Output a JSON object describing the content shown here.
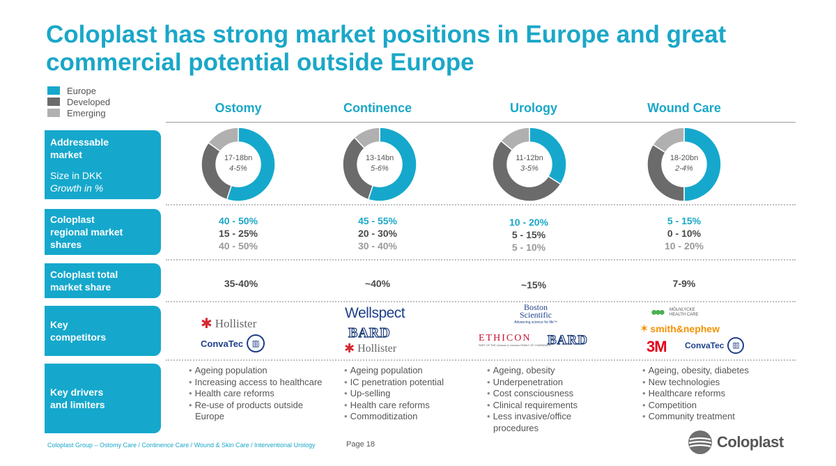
{
  "title": "Coloplast has strong market positions in Europe and great commercial potential outside Europe",
  "legend": [
    {
      "label": "Europe",
      "color": "#15a8cc"
    },
    {
      "label": "Developed",
      "color": "#6b6b6b"
    },
    {
      "label": "Emerging",
      "color": "#b0b0b0"
    }
  ],
  "rows": {
    "addressable": {
      "line1": "Addressable",
      "line2": "market",
      "sub1": "Size in DKK",
      "sub2": "Growth in %"
    },
    "regional": {
      "line1": "Coloplast",
      "line2": "regional market",
      "line3": "shares"
    },
    "total": {
      "line1": "Coloplast total",
      "line2": "market share"
    },
    "competitors": {
      "line1": "Key",
      "line2": "competitors"
    },
    "drivers": {
      "line1": "Key drivers",
      "line2": "and limiters"
    }
  },
  "columns": [
    {
      "name": "Ostomy",
      "size": "17-18bn",
      "growth": "4-5%",
      "shares": {
        "europe": "40 - 50%",
        "developed": "15 - 25%",
        "emerging": "40 - 50%"
      },
      "total": "35-40%",
      "competitors": [
        "Hollister",
        "ConvaTec"
      ],
      "drivers": [
        "Ageing population",
        "Increasing access to healthcare",
        "Health care reforms",
        "Re-use of products outside Europe"
      ]
    },
    {
      "name": "Continence",
      "size": "13-14bn",
      "growth": "5-6%",
      "shares": {
        "europe": "45 - 55%",
        "developed": "20 - 30%",
        "emerging": "30 - 40%"
      },
      "total": "~40%",
      "competitors": [
        "Wellspect",
        "BARD",
        "Hollister"
      ],
      "drivers": [
        "Ageing population",
        "IC penetration potential",
        "Up-selling",
        "Health care reforms",
        "Commoditization"
      ]
    },
    {
      "name": "Urology",
      "size": "11-12bn",
      "growth": "3-5%",
      "shares": {
        "europe": "10 - 20%",
        "developed": "5 - 15%",
        "emerging": "5 - 10%"
      },
      "total": "~15%",
      "competitors": [
        "Boston Scientific",
        "ETHICON",
        "BARD"
      ],
      "drivers": [
        "Ageing, obesity",
        "Underpenetration",
        "Cost consciousness",
        "Clinical requirements",
        "Less invasive/office procedures"
      ]
    },
    {
      "name": "Wound Care",
      "size": "18-20bn",
      "growth": "2-4%",
      "shares": {
        "europe": "5 - 15%",
        "developed": "0 - 10%",
        "emerging": "10 - 20%"
      },
      "total": "7-9%",
      "competitors": [
        "MÖLNLYCKE HEALTH CARE",
        "smith&nephew",
        "3M",
        "ConvaTec"
      ],
      "drivers": [
        "Ageing, obesity, diabetes",
        "New technologies",
        "Healthcare reforms",
        "Competition",
        "Community treatment"
      ]
    }
  ],
  "logo_text": {
    "boston_tagline": "Advancing science for life™",
    "ethicon_sub": "PART OF THE Johnson & Johnson FAMILY OF COMPANIES"
  },
  "chart_data": [
    {
      "type": "pie",
      "title": "Ostomy",
      "categories": [
        "Europe",
        "Developed",
        "Emerging"
      ],
      "values": [
        55,
        30,
        15
      ],
      "annotations": [
        "17-18bn",
        "4-5%"
      ]
    },
    {
      "type": "pie",
      "title": "Continence",
      "categories": [
        "Europe",
        "Developed",
        "Emerging"
      ],
      "values": [
        55,
        33,
        12
      ],
      "annotations": [
        "13-14bn",
        "5-6%"
      ]
    },
    {
      "type": "pie",
      "title": "Urology",
      "categories": [
        "Europe",
        "Developed",
        "Emerging"
      ],
      "values": [
        34,
        52,
        14
      ],
      "annotations": [
        "11-12bn",
        "3-5%"
      ]
    },
    {
      "type": "pie",
      "title": "Wound Care",
      "categories": [
        "Europe",
        "Developed",
        "Emerging"
      ],
      "values": [
        50,
        34,
        16
      ],
      "annotations": [
        "18-20bn",
        "2-4%"
      ]
    }
  ],
  "footer": "Coloplast Group – Ostomy Care / Continence Care / Wound & Skin Care / Interventional Urology",
  "page": "Page 18",
  "brand": "Coloplast",
  "colors": {
    "accent": "#15a8cc",
    "developed": "#6b6b6b",
    "emerging": "#b0b0b0",
    "shareEurope": "#1aa7c8",
    "shareDeveloped": "#4a4a4a",
    "shareEmerging": "#9a9a9a"
  }
}
